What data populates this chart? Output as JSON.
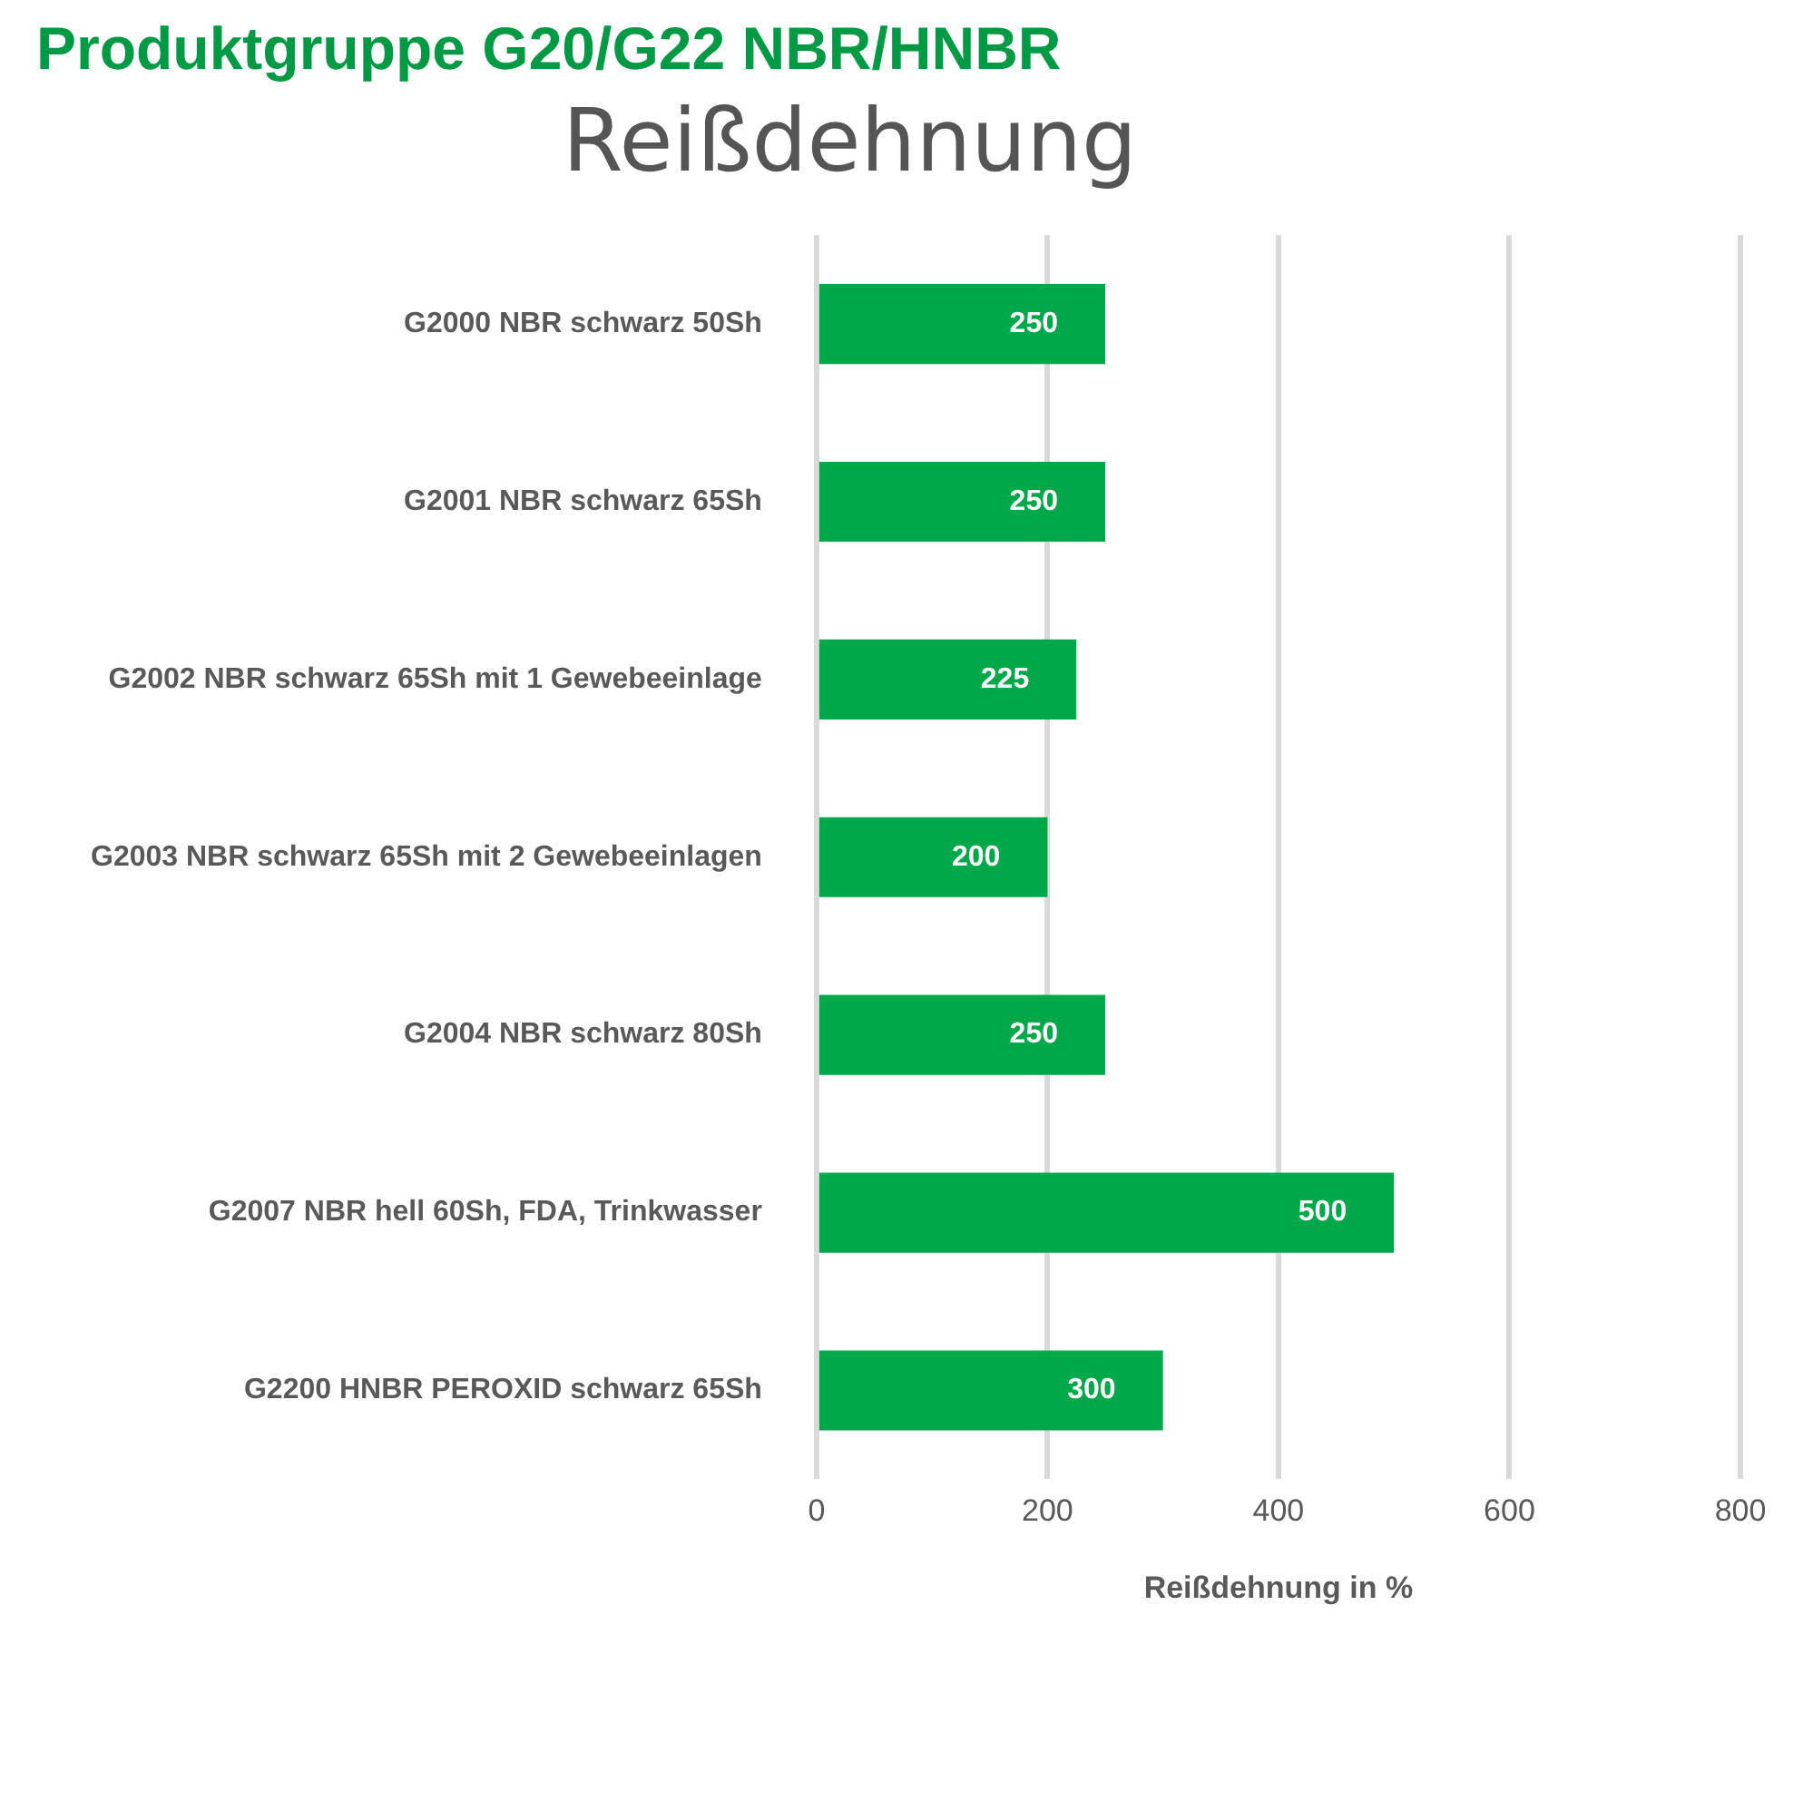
{
  "chart_data": {
    "type": "bar",
    "orientation": "horizontal",
    "title": "Produktgruppe G20/G22 NBR/HNBR",
    "subtitle": "Reißdehnung",
    "xlabel": "Reißdehnung in %",
    "categories": [
      "G2000 NBR schwarz 50Sh",
      "G2001 NBR schwarz 65Sh",
      "G2002 NBR schwarz 65Sh mit 1 Gewebeeinlage",
      "G2003 NBR schwarz 65Sh mit 2 Gewebeeinlagen",
      "G2004 NBR schwarz 80Sh",
      "G2007 NBR hell 60Sh, FDA, Trinkwasser",
      "G2200 HNBR PEROXID schwarz 65Sh"
    ],
    "values": [
      250,
      250,
      225,
      200,
      250,
      500,
      300
    ],
    "color": "#00a84a",
    "xlim": [
      0,
      800
    ],
    "xticks": [
      0,
      200,
      400,
      600,
      800
    ],
    "grid": "x",
    "data_labels": true,
    "legend": false
  }
}
